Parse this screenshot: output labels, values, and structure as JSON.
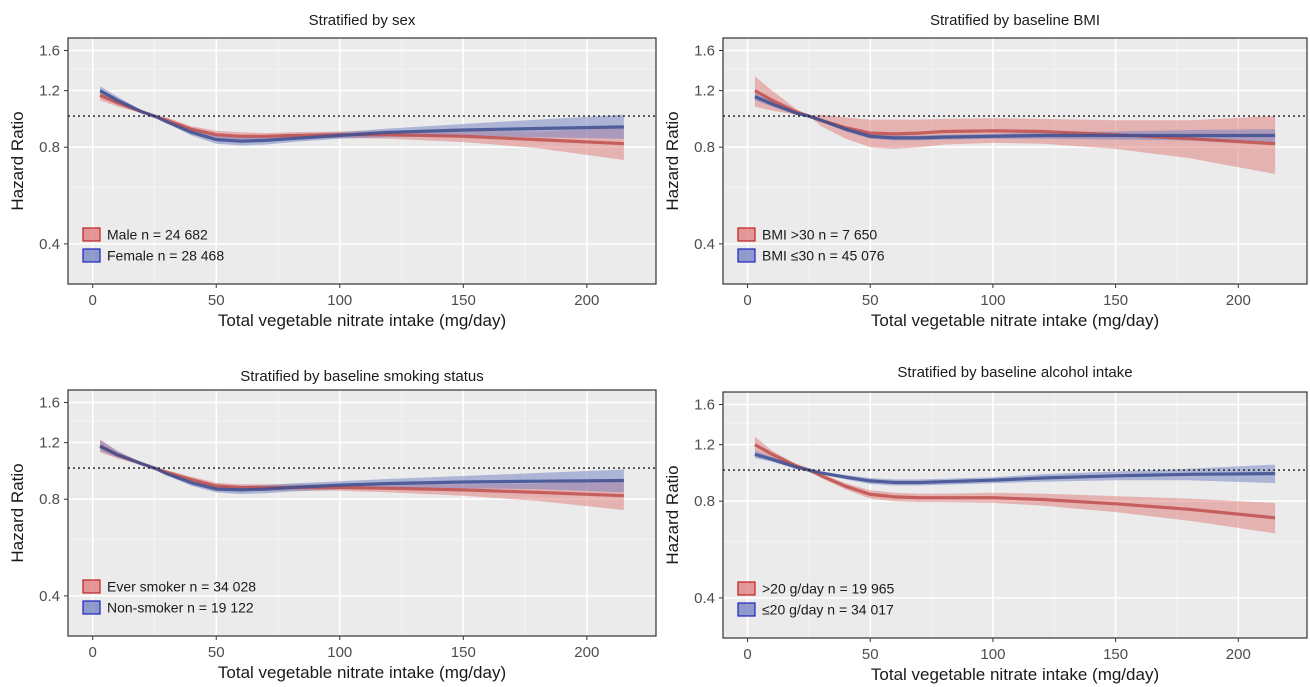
{
  "figure": {
    "series_colors": {
      "red_line": "#c0504d",
      "red_band": "#e07a7a",
      "blue_line": "#3e4f8f",
      "blue_band": "#6f7fc2",
      "panel_bg": "#ebebeb"
    }
  },
  "chart_data": [
    {
      "type": "line",
      "title": "Stratified by sex",
      "xlabel": "Total vegetable nitrate intake (mg/day)",
      "ylabel": "Hazard Ratio",
      "xlim": [
        -10,
        228
      ],
      "ylim": [
        0.3,
        1.75
      ],
      "y_scale": "log",
      "x_ticks": [
        0,
        50,
        100,
        150,
        200
      ],
      "x_tick_labels": [
        "0",
        "50",
        "100",
        "150",
        "200"
      ],
      "y_ticks": [
        0.4,
        0.8,
        1.2,
        1.6
      ],
      "y_tick_labels": [
        "0.4",
        "0.8",
        "1.2",
        "1.6"
      ],
      "reference_line": 1.0,
      "grid": true,
      "legend_position": "bottom-left",
      "x": [
        3,
        10,
        20,
        25,
        30,
        40,
        50,
        60,
        70,
        80,
        100,
        120,
        150,
        180,
        215
      ],
      "series": [
        {
          "name": "Male n = 24 682",
          "color": "#c0504d",
          "values": [
            1.16,
            1.1,
            1.03,
            1.0,
            0.97,
            0.91,
            0.875,
            0.865,
            0.865,
            0.87,
            0.875,
            0.875,
            0.865,
            0.845,
            0.82
          ],
          "lower": [
            1.12,
            1.07,
            1.02,
            1.0,
            0.95,
            0.89,
            0.85,
            0.84,
            0.845,
            0.85,
            0.855,
            0.85,
            0.83,
            0.795,
            0.73
          ],
          "upper": [
            1.21,
            1.13,
            1.04,
            1.0,
            0.99,
            0.93,
            0.9,
            0.89,
            0.885,
            0.89,
            0.895,
            0.9,
            0.9,
            0.895,
            0.92
          ]
        },
        {
          "name": "Female n = 28 468",
          "color": "#3e4f8f",
          "values": [
            1.2,
            1.12,
            1.03,
            1.0,
            0.96,
            0.89,
            0.845,
            0.835,
            0.84,
            0.85,
            0.87,
            0.89,
            0.905,
            0.915,
            0.925
          ],
          "lower": [
            1.16,
            1.09,
            1.02,
            1.0,
            0.95,
            0.87,
            0.82,
            0.81,
            0.815,
            0.83,
            0.85,
            0.86,
            0.865,
            0.86,
            0.85
          ],
          "upper": [
            1.24,
            1.15,
            1.04,
            1.0,
            0.975,
            0.91,
            0.87,
            0.86,
            0.865,
            0.875,
            0.89,
            0.915,
            0.945,
            0.975,
            1.01
          ]
        }
      ]
    },
    {
      "type": "line",
      "title": "Stratified by baseline BMI",
      "xlabel": "Total vegetable nitrate intake (mg/day)",
      "ylabel": "Hazard Ratio",
      "xlim": [
        -10,
        228
      ],
      "ylim": [
        0.3,
        1.75
      ],
      "y_scale": "log",
      "x_ticks": [
        0,
        50,
        100,
        150,
        200
      ],
      "x_tick_labels": [
        "0",
        "50",
        "100",
        "150",
        "200"
      ],
      "y_ticks": [
        0.4,
        0.8,
        1.2,
        1.6
      ],
      "y_tick_labels": [
        "0.4",
        "0.8",
        "1.2",
        "1.6"
      ],
      "reference_line": 1.0,
      "grid": true,
      "legend_position": "bottom-left",
      "x": [
        3,
        10,
        20,
        25,
        30,
        40,
        50,
        60,
        70,
        80,
        100,
        120,
        150,
        180,
        215
      ],
      "series": [
        {
          "name": "BMI >30 n = 7 650",
          "color": "#c0504d",
          "values": [
            1.2,
            1.12,
            1.03,
            1.0,
            0.97,
            0.92,
            0.885,
            0.88,
            0.885,
            0.895,
            0.9,
            0.895,
            0.875,
            0.85,
            0.82
          ],
          "lower": [
            1.07,
            1.04,
            1.01,
            1.0,
            0.93,
            0.85,
            0.8,
            0.79,
            0.8,
            0.815,
            0.825,
            0.82,
            0.79,
            0.74,
            0.66
          ],
          "upper": [
            1.33,
            1.2,
            1.05,
            1.0,
            1.01,
            0.99,
            0.975,
            0.975,
            0.975,
            0.98,
            0.985,
            0.98,
            0.97,
            0.97,
            1.0
          ]
        },
        {
          "name": "BMI ≤30 n = 45 076",
          "color": "#3e4f8f",
          "values": [
            1.15,
            1.09,
            1.02,
            1.0,
            0.97,
            0.91,
            0.865,
            0.855,
            0.855,
            0.86,
            0.865,
            0.87,
            0.87,
            0.87,
            0.87
          ],
          "lower": [
            1.12,
            1.07,
            1.01,
            1.0,
            0.96,
            0.895,
            0.85,
            0.84,
            0.84,
            0.845,
            0.85,
            0.85,
            0.845,
            0.84,
            0.83
          ],
          "upper": [
            1.18,
            1.11,
            1.03,
            1.0,
            0.98,
            0.925,
            0.88,
            0.87,
            0.87,
            0.875,
            0.88,
            0.89,
            0.895,
            0.905,
            0.91
          ]
        }
      ]
    },
    {
      "type": "line",
      "title": "Stratified by baseline smoking status",
      "xlabel": "Total vegetable nitrate intake (mg/day)",
      "ylabel": "Hazard Ratio",
      "xlim": [
        -10,
        228
      ],
      "ylim": [
        0.3,
        1.75
      ],
      "y_scale": "log",
      "x_ticks": [
        0,
        50,
        100,
        150,
        200
      ],
      "x_tick_labels": [
        "0",
        "50",
        "100",
        "150",
        "200"
      ],
      "y_ticks": [
        0.4,
        0.8,
        1.2,
        1.6
      ],
      "y_tick_labels": [
        "0.4",
        "0.8",
        "1.2",
        "1.6"
      ],
      "reference_line": 1.0,
      "grid": true,
      "legend_position": "bottom-left",
      "x": [
        3,
        10,
        20,
        25,
        30,
        40,
        50,
        60,
        70,
        80,
        100,
        120,
        150,
        180,
        215
      ],
      "series": [
        {
          "name": "Ever smoker n = 34 028",
          "color": "#c0504d",
          "values": [
            1.17,
            1.1,
            1.03,
            1.0,
            0.97,
            0.92,
            0.88,
            0.87,
            0.87,
            0.87,
            0.87,
            0.865,
            0.855,
            0.84,
            0.82
          ],
          "lower": [
            1.12,
            1.07,
            1.02,
            1.0,
            0.955,
            0.9,
            0.86,
            0.85,
            0.85,
            0.85,
            0.85,
            0.84,
            0.82,
            0.79,
            0.74
          ],
          "upper": [
            1.23,
            1.13,
            1.04,
            1.0,
            0.985,
            0.94,
            0.9,
            0.89,
            0.89,
            0.89,
            0.89,
            0.89,
            0.89,
            0.895,
            0.92
          ]
        },
        {
          "name": "Non-smoker n = 19 122",
          "color": "#3e4f8f",
          "values": [
            1.17,
            1.1,
            1.03,
            1.0,
            0.96,
            0.9,
            0.86,
            0.855,
            0.86,
            0.87,
            0.885,
            0.895,
            0.905,
            0.91,
            0.915
          ],
          "lower": [
            1.13,
            1.08,
            1.02,
            1.0,
            0.95,
            0.88,
            0.84,
            0.83,
            0.835,
            0.845,
            0.86,
            0.865,
            0.865,
            0.86,
            0.84
          ],
          "upper": [
            1.22,
            1.13,
            1.04,
            1.0,
            0.975,
            0.92,
            0.88,
            0.88,
            0.885,
            0.895,
            0.91,
            0.925,
            0.945,
            0.965,
            0.99
          ]
        }
      ]
    },
    {
      "type": "line",
      "title": "Stratified by baseline alcohol intake",
      "xlabel": "Total vegetable nitrate intake (mg/day)",
      "ylabel": "Hazard Ratio",
      "xlim": [
        -10,
        228
      ],
      "ylim": [
        0.3,
        1.75
      ],
      "y_scale": "log",
      "x_ticks": [
        0,
        50,
        100,
        150,
        200
      ],
      "x_tick_labels": [
        "0",
        "50",
        "100",
        "150",
        "200"
      ],
      "y_ticks": [
        0.4,
        0.8,
        1.2,
        1.6
      ],
      "y_tick_labels": [
        "0.4",
        "0.8",
        "1.2",
        "1.6"
      ],
      "reference_line": 1.0,
      "grid": true,
      "legend_position": "bottom-left",
      "x": [
        3,
        10,
        20,
        25,
        30,
        40,
        50,
        60,
        70,
        80,
        100,
        120,
        150,
        180,
        215
      ],
      "series": [
        {
          "name": ">20 g/day n = 19 965",
          "color": "#c0504d",
          "values": [
            1.2,
            1.12,
            1.03,
            1.0,
            0.96,
            0.89,
            0.84,
            0.825,
            0.82,
            0.82,
            0.82,
            0.81,
            0.785,
            0.755,
            0.71
          ],
          "lower": [
            1.14,
            1.09,
            1.02,
            1.0,
            0.945,
            0.87,
            0.815,
            0.8,
            0.795,
            0.795,
            0.79,
            0.775,
            0.74,
            0.695,
            0.635
          ],
          "upper": [
            1.27,
            1.15,
            1.04,
            1.0,
            0.975,
            0.91,
            0.865,
            0.85,
            0.845,
            0.845,
            0.85,
            0.845,
            0.83,
            0.815,
            0.79
          ]
        },
        {
          "name": "≤20 g/day n = 34 017",
          "color": "#3e4f8f",
          "values": [
            1.12,
            1.08,
            1.02,
            1.0,
            0.98,
            0.95,
            0.925,
            0.915,
            0.915,
            0.92,
            0.93,
            0.945,
            0.96,
            0.97,
            0.975
          ],
          "lower": [
            1.09,
            1.06,
            1.01,
            1.0,
            0.97,
            0.935,
            0.905,
            0.895,
            0.895,
            0.9,
            0.91,
            0.92,
            0.93,
            0.93,
            0.91
          ],
          "upper": [
            1.15,
            1.1,
            1.03,
            1.0,
            0.99,
            0.965,
            0.945,
            0.935,
            0.935,
            0.94,
            0.95,
            0.97,
            0.99,
            1.01,
            1.04
          ]
        }
      ]
    }
  ]
}
